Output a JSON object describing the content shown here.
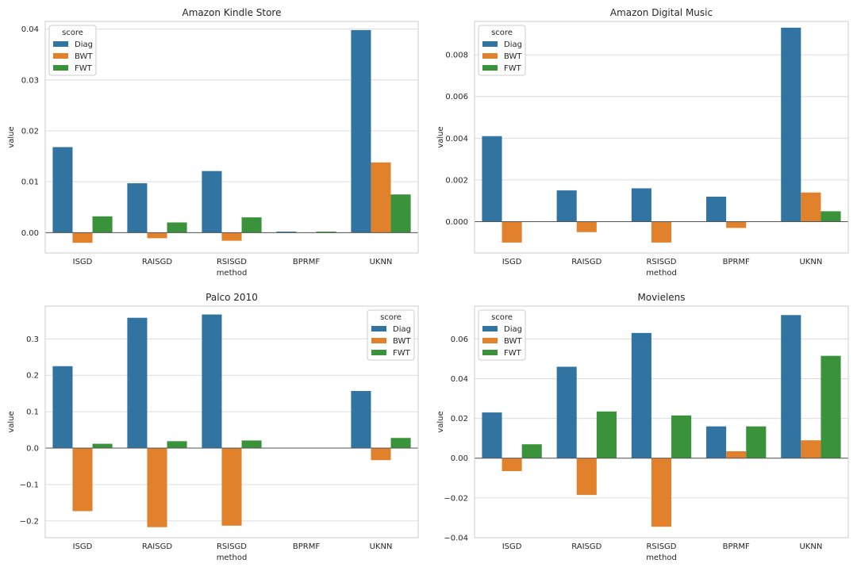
{
  "chart_data": [
    {
      "type": "bar",
      "title": "Amazon Kindle Store",
      "xlabel": "method",
      "ylabel": "value",
      "categories": [
        "ISGD",
        "RAISGD",
        "RSISGD",
        "BPRMF",
        "UKNN"
      ],
      "series": [
        {
          "name": "Diag",
          "color": "#3274a1",
          "values": [
            0.0168,
            0.0097,
            0.0121,
            0.0002,
            0.0398
          ]
        },
        {
          "name": "BWT",
          "color": "#e1812c",
          "values": [
            -0.002,
            -0.0011,
            -0.0016,
            0.0,
            0.0138
          ]
        },
        {
          "name": "FWT",
          "color": "#3a923a",
          "values": [
            0.0032,
            0.002,
            0.003,
            0.0002,
            0.0075
          ]
        }
      ],
      "ylim": [
        -0.004,
        0.0415
      ],
      "yticks": [
        0.0,
        0.01,
        0.02,
        0.03,
        0.04
      ],
      "ytick_labels": [
        "0.00",
        "0.01",
        "0.02",
        "0.03",
        "0.04"
      ],
      "legend": {
        "title": "score",
        "position": "top-left"
      },
      "grid": true
    },
    {
      "type": "bar",
      "title": "Amazon Digital Music",
      "xlabel": "method",
      "ylabel": "value",
      "categories": [
        "ISGD",
        "RAISGD",
        "RSISGD",
        "BPRMF",
        "UKNN"
      ],
      "series": [
        {
          "name": "Diag",
          "color": "#3274a1",
          "values": [
            0.0041,
            0.0015,
            0.0016,
            0.0012,
            0.0093
          ]
        },
        {
          "name": "BWT",
          "color": "#e1812c",
          "values": [
            -0.001,
            -0.0005,
            -0.001,
            -0.0003,
            0.0014
          ]
        },
        {
          "name": "FWT",
          "color": "#3a923a",
          "values": [
            0.0,
            0.0,
            0.0,
            0.0,
            0.0005
          ]
        }
      ],
      "ylim": [
        -0.0015,
        0.0096
      ],
      "yticks": [
        0.0,
        0.002,
        0.004,
        0.006,
        0.008
      ],
      "ytick_labels": [
        "0.000",
        "0.002",
        "0.004",
        "0.006",
        "0.008"
      ],
      "legend": {
        "title": "score",
        "position": "top-left"
      },
      "grid": true
    },
    {
      "type": "bar",
      "title": "Palco 2010",
      "xlabel": "method",
      "ylabel": "value",
      "categories": [
        "ISGD",
        "RAISGD",
        "RSISGD",
        "BPRMF",
        "UKNN"
      ],
      "series": [
        {
          "name": "Diag",
          "color": "#3274a1",
          "values": [
            0.225,
            0.358,
            0.367,
            0.0,
            0.157
          ]
        },
        {
          "name": "BWT",
          "color": "#e1812c",
          "values": [
            -0.173,
            -0.217,
            -0.213,
            0.0,
            -0.033
          ]
        },
        {
          "name": "FWT",
          "color": "#3a923a",
          "values": [
            0.012,
            0.019,
            0.021,
            0.0,
            0.028
          ]
        }
      ],
      "ylim": [
        -0.246,
        0.39
      ],
      "yticks": [
        -0.2,
        -0.1,
        0.0,
        0.1,
        0.2,
        0.3
      ],
      "ytick_labels": [
        "−0.2",
        "−0.1",
        "0.0",
        "0.1",
        "0.2",
        "0.3"
      ],
      "legend": {
        "title": "score",
        "position": "top-right"
      },
      "grid": true
    },
    {
      "type": "bar",
      "title": "Movielens",
      "xlabel": "method",
      "ylabel": "value",
      "categories": [
        "ISGD",
        "RAISGD",
        "RSISGD",
        "BPRMF",
        "UKNN"
      ],
      "series": [
        {
          "name": "Diag",
          "color": "#3274a1",
          "values": [
            0.023,
            0.046,
            0.063,
            0.016,
            0.072
          ]
        },
        {
          "name": "BWT",
          "color": "#e1812c",
          "values": [
            -0.0065,
            -0.0185,
            -0.0345,
            0.0035,
            0.009
          ]
        },
        {
          "name": "FWT",
          "color": "#3a923a",
          "values": [
            0.007,
            0.0235,
            0.0215,
            0.016,
            0.0515
          ]
        }
      ],
      "ylim": [
        -0.04,
        0.0765
      ],
      "yticks": [
        -0.04,
        -0.02,
        0.0,
        0.02,
        0.04,
        0.06
      ],
      "ytick_labels": [
        "−0.04",
        "−0.02",
        "0.00",
        "0.02",
        "0.04",
        "0.06"
      ],
      "legend": {
        "title": "score",
        "position": "top-left"
      },
      "grid": true
    }
  ]
}
